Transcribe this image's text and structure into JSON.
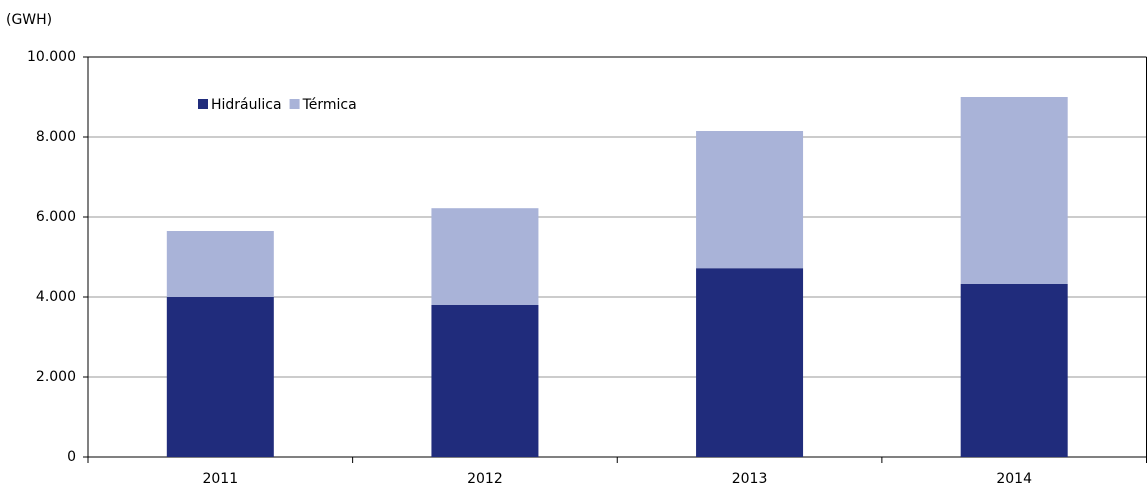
{
  "chart_data": {
    "type": "stacked_bar",
    "y_label": "(GWH)",
    "categories": [
      "2011",
      "2012",
      "2013",
      "2014"
    ],
    "series": [
      {
        "name": "Hidráulica",
        "color": "#202c7c",
        "values": [
          4000,
          3800,
          4720,
          4325
        ]
      },
      {
        "name": "Térmica",
        "color": "#a9b3d8",
        "values": [
          1650,
          2420,
          3430,
          4675
        ]
      }
    ],
    "ylim": [
      0,
      10000
    ],
    "yticks": [
      0,
      {
        "value": 2000,
        "label": "2.000"
      },
      {
        "value": 4000,
        "label": "4.000"
      },
      {
        "value": 6000,
        "label": "6.000"
      },
      {
        "value": 8000,
        "label": "8.000"
      },
      {
        "value": 10000,
        "label": "10.000"
      }
    ],
    "grid": true,
    "legend": "top-left"
  }
}
